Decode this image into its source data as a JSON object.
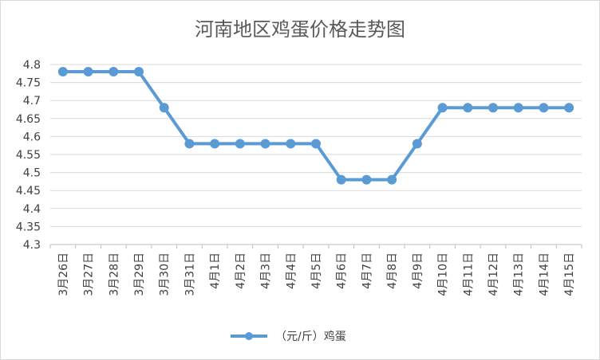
{
  "chart_data": {
    "type": "line",
    "title": "河南地区鸡蛋价格走势图",
    "categories": [
      "3月26日",
      "3月27日",
      "3月28日",
      "3月29日",
      "3月30日",
      "3月31日",
      "4月1日",
      "4月2日",
      "4月3日",
      "4月4日",
      "4月5日",
      "4月6日",
      "4月7日",
      "4月8日",
      "4月9日",
      "4月10日",
      "4月11日",
      "4月12日",
      "4月13日",
      "4月14日",
      "4月15日"
    ],
    "series": [
      {
        "name": "（元/斤）鸡蛋",
        "color": "#5b9bd5",
        "values": [
          4.78,
          4.78,
          4.78,
          4.78,
          4.68,
          4.58,
          4.58,
          4.58,
          4.58,
          4.58,
          4.58,
          4.48,
          4.48,
          4.48,
          4.58,
          4.68,
          4.68,
          4.68,
          4.68,
          4.68,
          4.68
        ]
      }
    ],
    "ylim": [
      4.3,
      4.8
    ],
    "yticks": [
      "4.3",
      "4.35",
      "4.4",
      "4.45",
      "4.5",
      "4.55",
      "4.6",
      "4.65",
      "4.7",
      "4.75",
      "4.8"
    ],
    "xlabel": "",
    "ylabel": "",
    "grid": true,
    "legend": "bottom"
  }
}
